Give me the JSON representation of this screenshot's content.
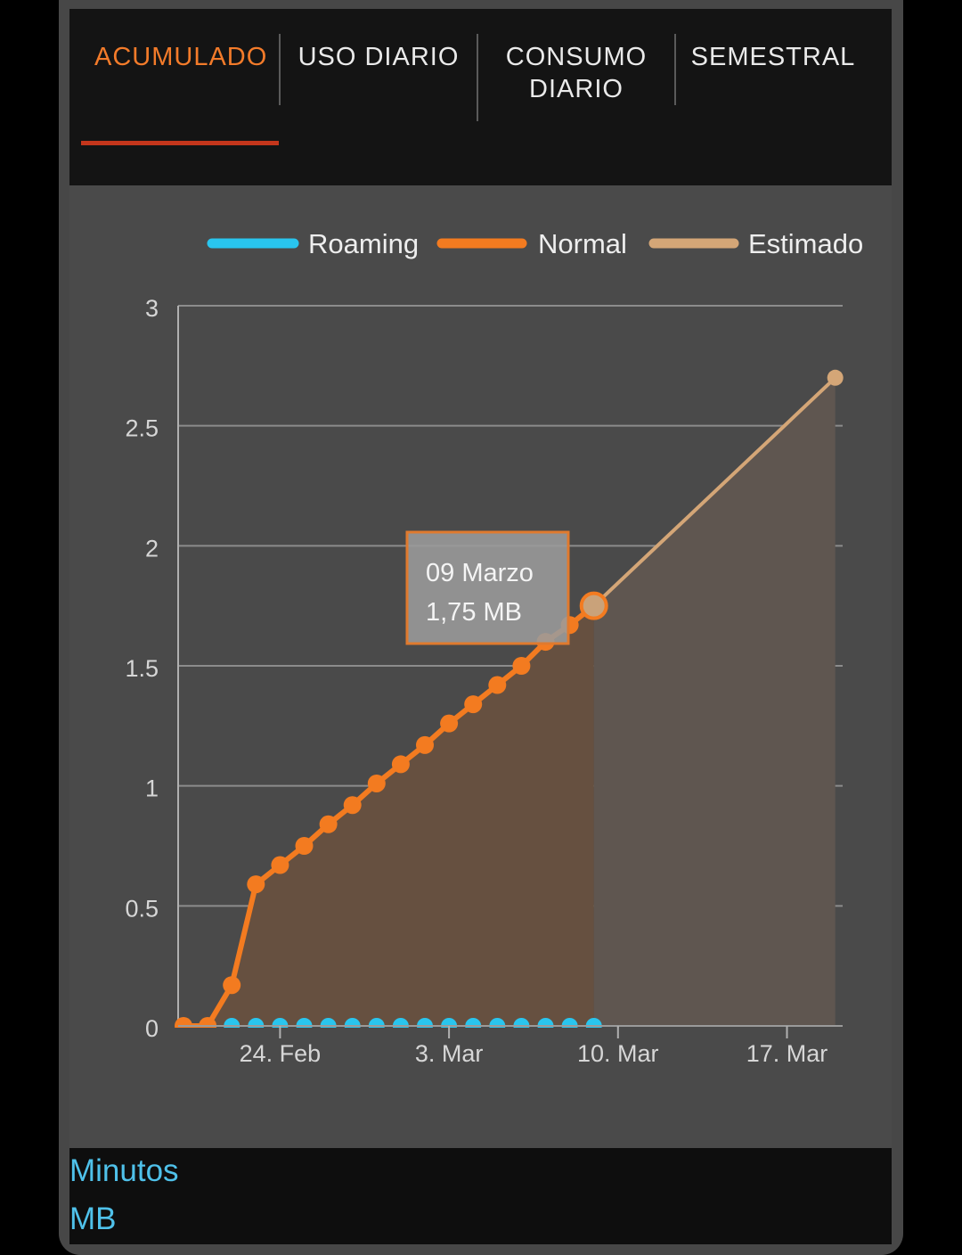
{
  "tabs": [
    {
      "label": "ACUMULADO",
      "active": true
    },
    {
      "label": "USO DIARIO",
      "active": false
    },
    {
      "label": "CONSUMO\nDIARIO",
      "active": false
    },
    {
      "label": "SEMESTRAL",
      "active": false
    }
  ],
  "colors": {
    "roaming": "#29c5ee",
    "normal": "#f37b20",
    "estimado": "#d4a677",
    "active_tab": "#f37b2a",
    "underline": "#c4361c",
    "footer_link": "#4fc1ea"
  },
  "chart_data": {
    "type": "area",
    "xlabel": "",
    "ylabel": "",
    "ylim": [
      0,
      3
    ],
    "yticks": [
      "0",
      "0.5",
      "1",
      "1.5",
      "2",
      "2.5",
      "3"
    ],
    "xticks": [
      {
        "label": "24. Feb",
        "date": "2019-02-24"
      },
      {
        "label": "3. Mar",
        "date": "2019-03-03"
      },
      {
        "label": "10. Mar",
        "date": "2019-03-10"
      },
      {
        "label": "17. Mar",
        "date": "2019-03-17"
      }
    ],
    "grid": true,
    "legend_position": "top",
    "series": [
      {
        "name": "Roaming",
        "points": [
          [
            "2019-02-20",
            0
          ],
          [
            "2019-02-21",
            0
          ],
          [
            "2019-02-22",
            0
          ],
          [
            "2019-02-23",
            0
          ],
          [
            "2019-02-24",
            0
          ],
          [
            "2019-02-25",
            0
          ],
          [
            "2019-02-26",
            0
          ],
          [
            "2019-02-27",
            0
          ],
          [
            "2019-02-28",
            0
          ],
          [
            "2019-03-01",
            0
          ],
          [
            "2019-03-02",
            0
          ],
          [
            "2019-03-03",
            0
          ],
          [
            "2019-03-04",
            0
          ],
          [
            "2019-03-05",
            0
          ],
          [
            "2019-03-06",
            0
          ],
          [
            "2019-03-07",
            0
          ],
          [
            "2019-03-08",
            0
          ],
          [
            "2019-03-09",
            0
          ]
        ]
      },
      {
        "name": "Normal",
        "points": [
          [
            "2019-02-20",
            0
          ],
          [
            "2019-02-21",
            0
          ],
          [
            "2019-02-22",
            0.17
          ],
          [
            "2019-02-23",
            0.59
          ],
          [
            "2019-02-24",
            0.67
          ],
          [
            "2019-02-25",
            0.75
          ],
          [
            "2019-02-26",
            0.84
          ],
          [
            "2019-02-27",
            0.92
          ],
          [
            "2019-02-28",
            1.01
          ],
          [
            "2019-03-01",
            1.09
          ],
          [
            "2019-03-02",
            1.17
          ],
          [
            "2019-03-03",
            1.26
          ],
          [
            "2019-03-04",
            1.34
          ],
          [
            "2019-03-05",
            1.42
          ],
          [
            "2019-03-06",
            1.5
          ],
          [
            "2019-03-07",
            1.6
          ],
          [
            "2019-03-08",
            1.67
          ],
          [
            "2019-03-09",
            1.75
          ]
        ]
      },
      {
        "name": "Estimado",
        "points": [
          [
            "2019-03-09",
            1.75
          ],
          [
            "2019-03-19",
            2.7
          ]
        ]
      }
    ],
    "tooltip": {
      "date_label": "09 Marzo",
      "value_label": "1,75 MB",
      "point": [
        "2019-03-09",
        1.75
      ]
    }
  },
  "footer": {
    "links": [
      "Minutos",
      "MB"
    ]
  }
}
